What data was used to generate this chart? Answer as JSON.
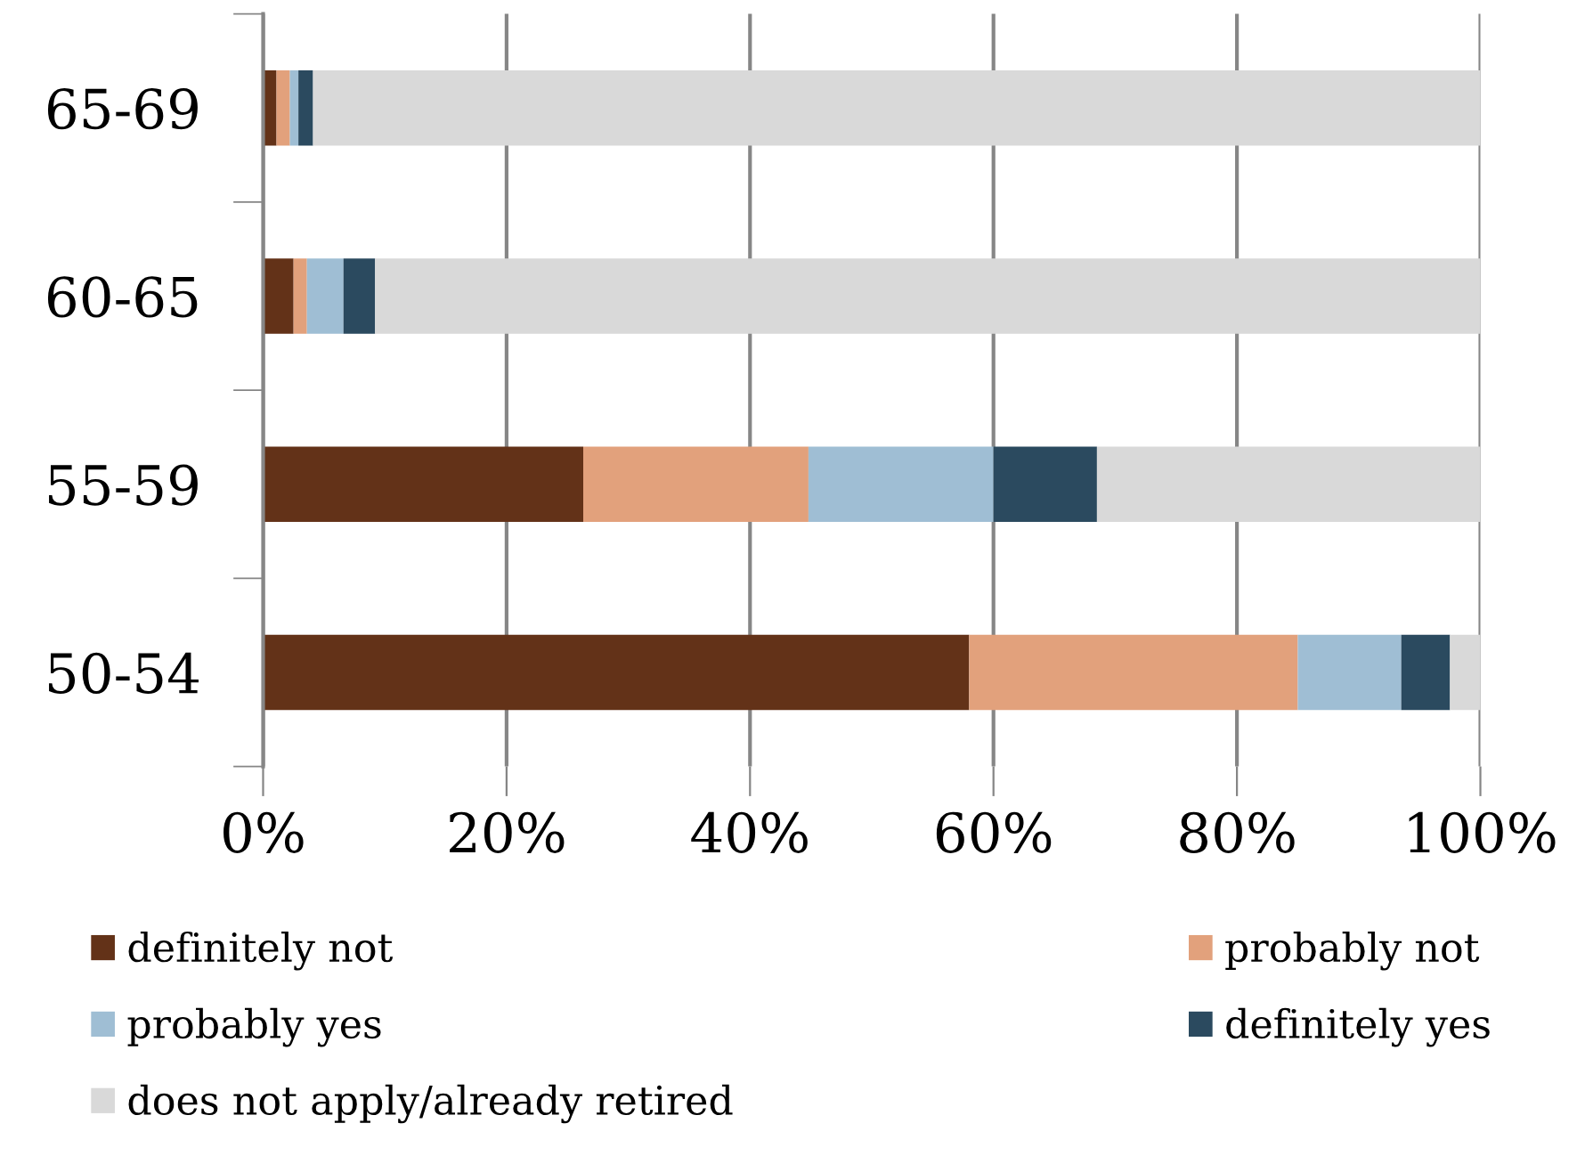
{
  "chart_data": {
    "type": "bar",
    "orientation": "horizontal",
    "stacked": true,
    "categories": [
      "65-69",
      "60-65",
      "55-59",
      "50-54"
    ],
    "series": [
      {
        "name": "definitely not",
        "color": "#633218",
        "values": [
          1.1,
          2.5,
          26.3,
          58.0
        ]
      },
      {
        "name": "probably not",
        "color": "#e2a17c",
        "values": [
          1.1,
          1.1,
          18.5,
          27.0
        ]
      },
      {
        "name": "probably yes",
        "color": "#9fbed4",
        "values": [
          0.7,
          3.0,
          15.2,
          8.5
        ]
      },
      {
        "name": "definitely yes",
        "color": "#2b4a5f",
        "values": [
          1.2,
          2.6,
          8.5,
          4.0
        ]
      },
      {
        "name": "does not apply/already retired",
        "color": "#d9d9d9",
        "values": [
          95.9,
          90.8,
          31.5,
          2.5
        ]
      }
    ],
    "xlim": [
      0,
      100
    ],
    "xticks": [
      {
        "value": 0,
        "label": "0%"
      },
      {
        "value": 20,
        "label": "20%"
      },
      {
        "value": 40,
        "label": "40%"
      },
      {
        "value": 60,
        "label": "60%"
      },
      {
        "value": 80,
        "label": "80%"
      },
      {
        "value": 100,
        "label": "100%"
      }
    ],
    "grid": "x",
    "legend": "bottom"
  }
}
